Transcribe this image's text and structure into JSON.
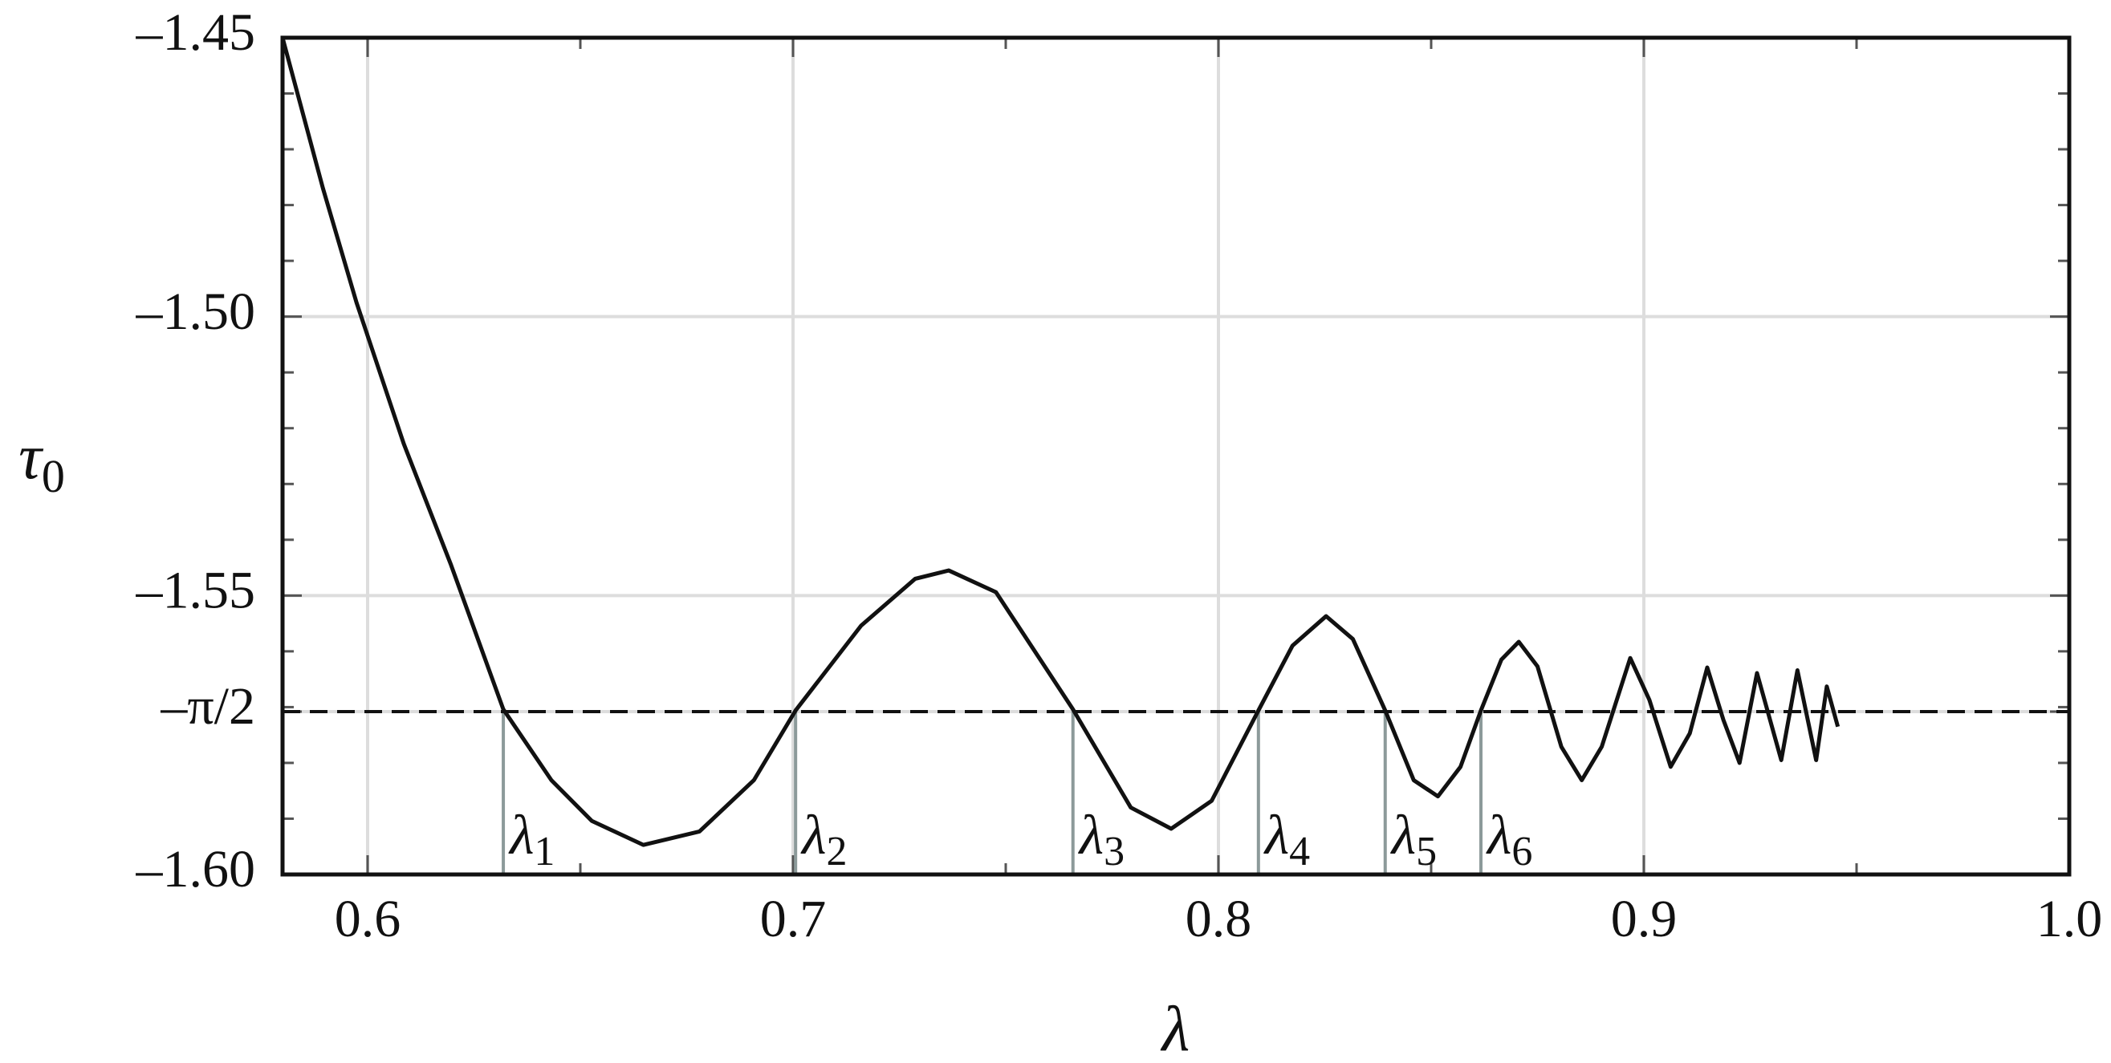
{
  "chart_data": {
    "type": "line",
    "xlabel": "λ",
    "ylabel": "τ",
    "ylabel_subscript": "0",
    "xlim": [
      0.58,
      1.0
    ],
    "ylim": [
      -1.6,
      -1.45
    ],
    "xticks": [
      0.6,
      0.7,
      0.8,
      0.9,
      {
        "value": 1.0,
        "label": "1.0"
      }
    ],
    "yticks": [
      {
        "value": -1.6,
        "label": "–1.60"
      },
      {
        "value": -1.5708,
        "label": "–π/2"
      },
      {
        "value": -1.55,
        "label": "–1.55"
      },
      {
        "value": -1.5,
        "label": "–1.50"
      },
      {
        "value": -1.45,
        "label": "–1.45"
      }
    ],
    "xminor_ticks": [
      0.65,
      0.75,
      0.85,
      0.95
    ],
    "yminor_ticks": [
      -1.59,
      -1.58,
      -1.57,
      -1.56,
      -1.54,
      -1.53,
      -1.52,
      -1.51,
      -1.49,
      -1.48,
      -1.47,
      -1.46
    ],
    "grid": true,
    "color": "#111111",
    "reference_line": {
      "y": -1.5708,
      "color": "#111111",
      "dashed": true
    },
    "markers": [
      {
        "x": 0.6319,
        "label": "λ",
        "subscript": "1"
      },
      {
        "x": 0.7006,
        "label": "λ",
        "subscript": "2"
      },
      {
        "x": 0.7658,
        "label": "λ",
        "subscript": "3"
      },
      {
        "x": 0.8094,
        "label": "λ",
        "subscript": "4"
      },
      {
        "x": 0.8392,
        "label": "λ",
        "subscript": "5"
      },
      {
        "x": 0.8617,
        "label": "λ",
        "subscript": "6"
      }
    ],
    "marker_color": "#8c9a9a",
    "x": [
      0.58,
      0.5895,
      0.5974,
      0.6085,
      0.6196,
      0.6319,
      0.6432,
      0.6527,
      0.6648,
      0.678,
      0.6908,
      0.7006,
      0.716,
      0.7287,
      0.7366,
      0.7477,
      0.7658,
      0.7794,
      0.7889,
      0.7984,
      0.8094,
      0.8174,
      0.8253,
      0.8316,
      0.8392,
      0.8459,
      0.8516,
      0.8569,
      0.8617,
      0.8665,
      0.8706,
      0.875,
      0.8806,
      0.8854,
      0.8901,
      0.8968,
      0.9013,
      0.9063,
      0.9108,
      0.9149,
      0.9187,
      0.9225,
      0.9266,
      0.9323,
      0.9361,
      0.9405,
      0.943,
      0.9456
    ],
    "values": [
      -1.45,
      -1.477,
      -1.4975,
      -1.5228,
      -1.5445,
      -1.5704,
      -1.5831,
      -1.5904,
      -1.5947,
      -1.5923,
      -1.5831,
      -1.5706,
      -1.5554,
      -1.547,
      -1.5455,
      -1.5494,
      -1.5704,
      -1.588,
      -1.5918,
      -1.5868,
      -1.5706,
      -1.559,
      -1.5537,
      -1.5578,
      -1.5706,
      -1.5831,
      -1.586,
      -1.5807,
      -1.5706,
      -1.5615,
      -1.5583,
      -1.5627,
      -1.5771,
      -1.5831,
      -1.5771,
      -1.5612,
      -1.5687,
      -1.5807,
      -1.5747,
      -1.5629,
      -1.5723,
      -1.58,
      -1.5639,
      -1.5795,
      -1.5634,
      -1.5795,
      -1.5663,
      -1.5735
    ]
  }
}
